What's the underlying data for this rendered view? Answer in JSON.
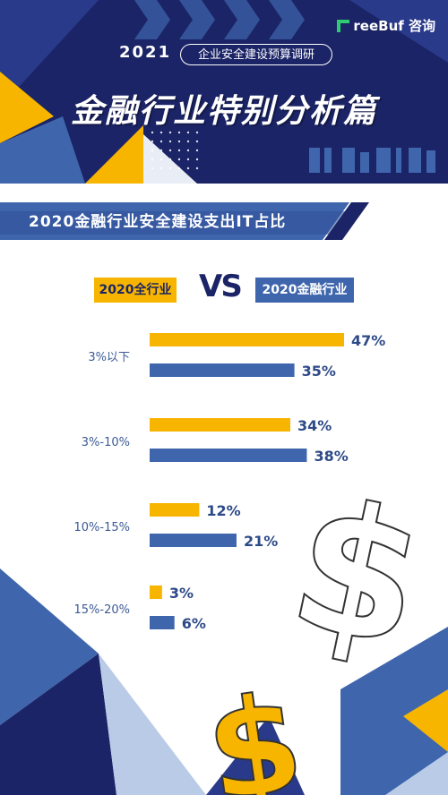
{
  "header": {
    "brand": "reeBuf 咨询",
    "year": "2021",
    "subtitle": "企业安全建设预算调研",
    "title": "金融行业特别分析篇"
  },
  "section": {
    "title": "2020金融行业安全建设支出IT占比"
  },
  "legend": {
    "vs": "VS"
  },
  "colors": {
    "navy": "#1b2466",
    "yellow": "#f7b500",
    "blue": "#3f66ad",
    "light_blue": "#b9cbe6"
  },
  "chart_data": {
    "type": "bar",
    "orientation": "horizontal",
    "categories": [
      "3%以下",
      "3%-10%",
      "10%-15%",
      "15%-20%"
    ],
    "series": [
      {
        "name": "2020全行业",
        "values": [
          47,
          34,
          12,
          3
        ]
      },
      {
        "name": "2020金融行业",
        "values": [
          35,
          38,
          21,
          6
        ]
      }
    ],
    "value_labels": {
      "2020全行业": [
        "47%",
        "34%",
        "12%",
        "3%"
      ],
      "2020金融行业": [
        "35%",
        "38%",
        "21%",
        "6%"
      ]
    },
    "legend_position": "top",
    "grid": false
  }
}
